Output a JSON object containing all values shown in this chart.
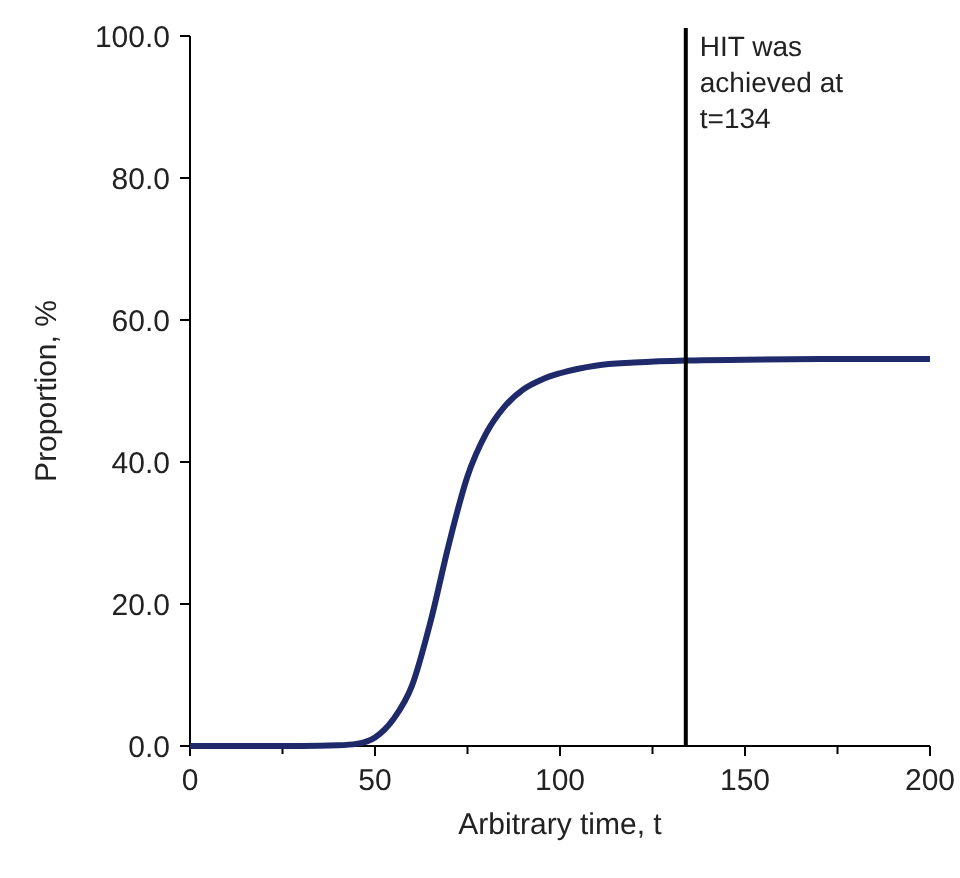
{
  "chart_data": {
    "type": "line",
    "xlabel": "Arbitrary time, t",
    "ylabel": "Proportion, %",
    "xlim": [
      0,
      200
    ],
    "xticks": [
      0,
      50,
      100,
      150,
      200
    ],
    "ylim": [
      0,
      100
    ],
    "yticks": [
      {
        "value": 0,
        "label": "0.0"
      },
      {
        "value": 20,
        "label": "20.0"
      },
      {
        "value": 40,
        "label": "40.0"
      },
      {
        "value": 60,
        "label": "60.0"
      },
      {
        "value": 80,
        "label": "80.0"
      },
      {
        "value": 100,
        "label": "100.0"
      }
    ],
    "grid": false,
    "marker": "none",
    "line_style": "solid",
    "series": [
      {
        "color": "#1f2a6b",
        "x": [
          0,
          30,
          40,
          45,
          50,
          55,
          60,
          65,
          70,
          75,
          80,
          85,
          90,
          95,
          100,
          110,
          120,
          134,
          150,
          175,
          200
        ],
        "values": [
          0,
          0,
          0.1,
          0.3,
          1.2,
          3.8,
          8.5,
          17.5,
          28.5,
          38,
          44,
          47.8,
          50.2,
          51.6,
          52.5,
          53.6,
          54,
          54.3,
          54.4,
          54.5,
          54.5
        ]
      }
    ],
    "ref_lines": [
      {
        "axis": "x",
        "value": 134,
        "label": "HIT was achieved at t=134",
        "color": "#000000"
      }
    ]
  }
}
